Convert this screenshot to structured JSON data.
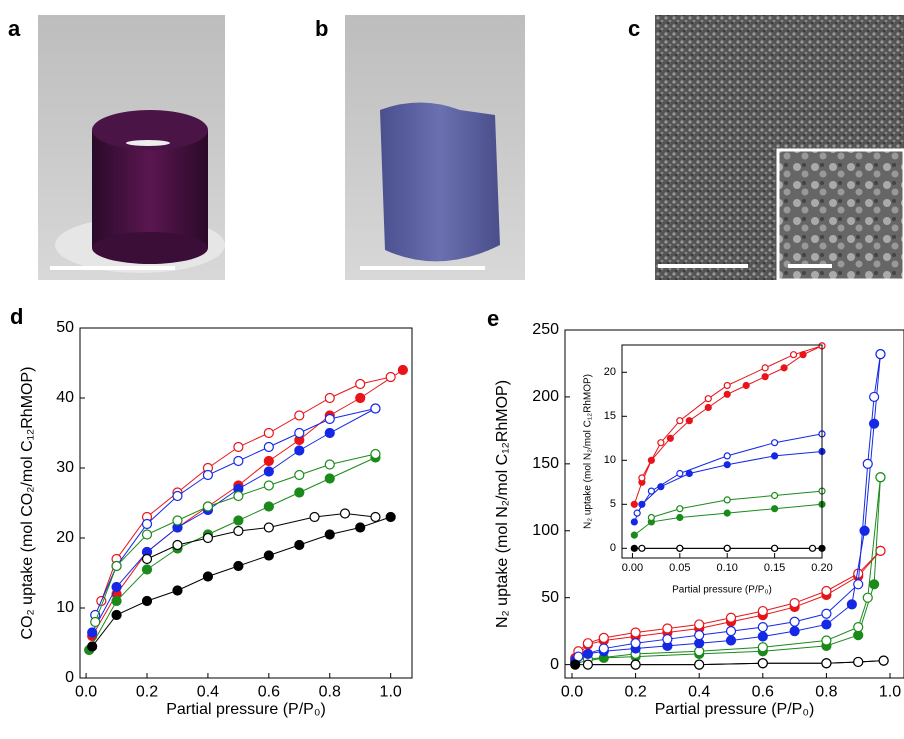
{
  "images": [
    {
      "label": "a"
    },
    {
      "label": "b"
    },
    {
      "label": "c"
    }
  ],
  "chart_data": [
    {
      "type": "line",
      "panel_label": "d",
      "x_label": "Partial pressure (P/P₀)",
      "y_label": "CO₂ uptake (mol CO₂/mol C₁₂RhMOP)",
      "xlim": [
        -0.02,
        1.07
      ],
      "ylim": [
        0,
        50
      ],
      "xticks": [
        {
          "value": 0,
          "label": "0.0"
        },
        {
          "value": 0.2,
          "label": "0.2"
        },
        {
          "value": 0.4,
          "label": "0.4"
        },
        {
          "value": 0.6,
          "label": "0.6"
        },
        {
          "value": 0.8,
          "label": "0.8"
        },
        {
          "value": 1,
          "label": "1.0"
        }
      ],
      "yticks": [
        0,
        10,
        20,
        30,
        40,
        50
      ],
      "series": [
        {
          "color": "#e8141a",
          "filled": true,
          "x": [
            0.02,
            0.1,
            0.2,
            0.3,
            0.4,
            0.5,
            0.6,
            0.7,
            0.8,
            0.9,
            1.04
          ],
          "values": [
            6,
            12,
            18,
            21.5,
            24.5,
            27.5,
            31,
            34,
            37.5,
            40,
            44
          ]
        },
        {
          "color": "#e8141a",
          "filled": false,
          "x": [
            1.0,
            0.9,
            0.8,
            0.7,
            0.6,
            0.5,
            0.4,
            0.3,
            0.2,
            0.1,
            0.05
          ],
          "values": [
            43,
            42,
            40,
            37.5,
            35,
            33,
            30,
            26.5,
            23,
            17,
            11
          ]
        },
        {
          "color": "#1428e6",
          "filled": true,
          "x": [
            0.02,
            0.1,
            0.2,
            0.3,
            0.4,
            0.5,
            0.6,
            0.7,
            0.8,
            0.95
          ],
          "values": [
            6.5,
            13,
            18,
            21.5,
            24,
            27,
            29.5,
            32.5,
            35,
            38.5
          ]
        },
        {
          "color": "#1428e6",
          "filled": false,
          "x": [
            0.95,
            0.8,
            0.7,
            0.6,
            0.5,
            0.4,
            0.3,
            0.2,
            0.1,
            0.03
          ],
          "values": [
            38.5,
            37,
            35,
            33,
            31,
            29,
            26,
            22,
            16,
            9
          ]
        },
        {
          "color": "#1a8a1a",
          "filled": true,
          "x": [
            0.01,
            0.1,
            0.2,
            0.3,
            0.4,
            0.5,
            0.6,
            0.7,
            0.8,
            0.95
          ],
          "values": [
            4,
            11,
            15.5,
            18.5,
            20.5,
            22.5,
            24.5,
            26.5,
            28.5,
            31.5
          ]
        },
        {
          "color": "#1a8a1a",
          "filled": false,
          "x": [
            0.95,
            0.8,
            0.7,
            0.6,
            0.5,
            0.4,
            0.3,
            0.2,
            0.1,
            0.03
          ],
          "values": [
            32,
            30.5,
            29,
            27.5,
            26,
            24.5,
            22.5,
            20.5,
            16,
            8
          ]
        },
        {
          "color": "#000000",
          "filled": true,
          "x": [
            0.02,
            0.1,
            0.2,
            0.3,
            0.4,
            0.5,
            0.6,
            0.7,
            0.8,
            0.9,
            1.0
          ],
          "values": [
            4.5,
            9,
            11,
            12.5,
            14.5,
            16,
            17.5,
            19,
            20.5,
            21.5,
            23
          ]
        },
        {
          "color": "#000000",
          "filled": false,
          "x": [
            0.95,
            0.85,
            0.75,
            0.6,
            0.5,
            0.4,
            0.3,
            0.2
          ],
          "values": [
            23,
            23.5,
            23,
            21.5,
            21,
            20,
            19,
            17
          ]
        }
      ]
    },
    {
      "type": "line",
      "panel_label": "e",
      "x_label": "Partial pressure (P/P₀)",
      "y_label": "N₂ uptake (mol N₂/mol C₁₂RhMOP)",
      "xlim": [
        -0.022,
        1.044
      ],
      "ylim": [
        -10,
        250
      ],
      "xticks": [
        {
          "value": 0,
          "label": "0.0"
        },
        {
          "value": 0.2,
          "label": "0.2"
        },
        {
          "value": 0.4,
          "label": "0.4"
        },
        {
          "value": 0.6,
          "label": "0.6"
        },
        {
          "value": 0.8,
          "label": "0.8"
        },
        {
          "value": 1,
          "label": "1.0"
        }
      ],
      "yticks": [
        0,
        50,
        100,
        150,
        200,
        250
      ],
      "series": [
        {
          "color": "#e8141a",
          "filled": true,
          "x": [
            0.01,
            0.05,
            0.1,
            0.2,
            0.3,
            0.4,
            0.5,
            0.6,
            0.7,
            0.8,
            0.9,
            0.97
          ],
          "values": [
            5,
            15,
            18,
            21,
            24,
            27,
            32,
            37,
            43,
            52,
            66,
            85
          ]
        },
        {
          "color": "#e8141a",
          "filled": false,
          "x": [
            0.97,
            0.9,
            0.8,
            0.7,
            0.6,
            0.5,
            0.4,
            0.3,
            0.2,
            0.1,
            0.05,
            0.02
          ],
          "values": [
            85,
            68,
            55,
            46,
            40,
            35,
            30,
            27,
            24,
            20,
            16,
            10
          ]
        },
        {
          "color": "#1a8a1a",
          "filled": true,
          "x": [
            0.01,
            0.1,
            0.2,
            0.4,
            0.6,
            0.8,
            0.9,
            0.95,
            0.97
          ],
          "values": [
            1,
            5,
            6,
            8,
            10,
            14,
            22,
            60,
            140
          ]
        },
        {
          "color": "#1a8a1a",
          "filled": false,
          "x": [
            0.97,
            0.93,
            0.9,
            0.8,
            0.6,
            0.4,
            0.2,
            0.05
          ],
          "values": [
            140,
            50,
            28,
            18,
            13,
            10,
            8,
            4
          ]
        },
        {
          "color": "#1428e6",
          "filled": true,
          "x": [
            0.01,
            0.05,
            0.1,
            0.2,
            0.3,
            0.4,
            0.5,
            0.6,
            0.7,
            0.8,
            0.88,
            0.92,
            0.95,
            0.97
          ],
          "values": [
            3,
            8,
            10,
            12,
            14,
            16,
            18,
            21,
            25,
            30,
            45,
            100,
            180,
            232
          ]
        },
        {
          "color": "#1428e6",
          "filled": false,
          "x": [
            0.97,
            0.95,
            0.93,
            0.9,
            0.8,
            0.7,
            0.6,
            0.5,
            0.4,
            0.3,
            0.2,
            0.1,
            0.02
          ],
          "values": [
            232,
            200,
            150,
            60,
            38,
            32,
            28,
            25,
            22,
            19,
            16,
            12,
            6
          ]
        },
        {
          "color": "#000000",
          "filled": true,
          "x": [
            0.01,
            0.2,
            0.4,
            0.6,
            0.8,
            0.9,
            0.98
          ],
          "values": [
            0,
            0,
            0,
            1,
            1,
            2,
            3
          ]
        },
        {
          "color": "#000000",
          "filled": false,
          "x": [
            0.98,
            0.9,
            0.8,
            0.6,
            0.4,
            0.2,
            0.05
          ],
          "values": [
            3,
            2,
            1,
            1,
            0,
            0,
            0
          ]
        }
      ]
    },
    {
      "type": "line",
      "x_label": "Partial pressure (P/P₀)",
      "y_label": "N₂ uptake (mol N₂/mol C₁₂RhMOP)",
      "xlim": [
        -0.011,
        0.2
      ],
      "ylim": [
        -1.1,
        23.1
      ],
      "xticks": [
        {
          "value": 0,
          "label": "0.00"
        },
        {
          "value": 0.05,
          "label": "0.05"
        },
        {
          "value": 0.1,
          "label": "0.10"
        },
        {
          "value": 0.15,
          "label": "0.15"
        },
        {
          "value": 0.2,
          "label": "0.20"
        }
      ],
      "yticks": [
        0,
        5,
        10,
        15,
        20
      ],
      "series": [
        {
          "color": "#e8141a",
          "filled": true,
          "x": [
            0.002,
            0.01,
            0.02,
            0.04,
            0.06,
            0.08,
            0.1,
            0.12,
            0.14,
            0.16,
            0.18,
            0.2
          ],
          "values": [
            5,
            7.5,
            10,
            12.5,
            14.5,
            16,
            17.5,
            18.5,
            19.5,
            20.5,
            22,
            23
          ]
        },
        {
          "color": "#e8141a",
          "filled": false,
          "x": [
            0.2,
            0.17,
            0.14,
            0.1,
            0.08,
            0.05,
            0.03,
            0.01
          ],
          "values": [
            23,
            22,
            20.5,
            18.5,
            17,
            14.5,
            12,
            8
          ]
        },
        {
          "color": "#1428e6",
          "filled": true,
          "x": [
            0.002,
            0.01,
            0.03,
            0.06,
            0.1,
            0.15,
            0.2
          ],
          "values": [
            3,
            5,
            7,
            8.5,
            9.5,
            10.5,
            11
          ]
        },
        {
          "color": "#1428e6",
          "filled": false,
          "x": [
            0.2,
            0.15,
            0.1,
            0.05,
            0.02,
            0.005
          ],
          "values": [
            13,
            12,
            10.5,
            8.5,
            6.5,
            4
          ]
        },
        {
          "color": "#1a8a1a",
          "filled": true,
          "x": [
            0.002,
            0.02,
            0.05,
            0.1,
            0.15,
            0.2
          ],
          "values": [
            1.5,
            3,
            3.5,
            4,
            4.5,
            5
          ]
        },
        {
          "color": "#1a8a1a",
          "filled": false,
          "x": [
            0.2,
            0.15,
            0.1,
            0.05,
            0.02
          ],
          "values": [
            6.5,
            6,
            5.5,
            4.5,
            3.5
          ]
        },
        {
          "color": "#000000",
          "filled": true,
          "x": [
            0.002,
            0.05,
            0.1,
            0.15,
            0.2
          ],
          "values": [
            0,
            0,
            0,
            0,
            0
          ]
        },
        {
          "color": "#000000",
          "filled": false,
          "x": [
            0.19,
            0.15,
            0.1,
            0.05,
            0.01
          ],
          "values": [
            0,
            0,
            0,
            0,
            0
          ]
        }
      ]
    }
  ]
}
